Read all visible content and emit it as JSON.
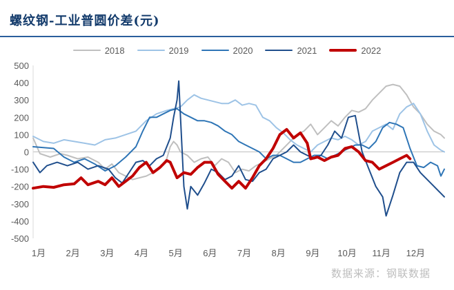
{
  "title": "螺纹钢-工业普圆价差(元)",
  "source": "数据来源：钢联数据",
  "chart_data": {
    "type": "line",
    "title": "螺纹钢-工业普圆价差(元)",
    "xlabel": "",
    "ylabel": "",
    "x_unit": "month (1 = start of January, 13 = end of December)",
    "xlim": [
      1,
      13
    ],
    "ylim": [
      -500,
      500
    ],
    "y_ticks": [
      "500",
      "400",
      "300",
      "200",
      "100",
      "0",
      "-100",
      "-200",
      "-300",
      "-400",
      "-500"
    ],
    "y_tick_values": [
      500,
      400,
      300,
      200,
      100,
      0,
      -100,
      -200,
      -300,
      -400,
      -500
    ],
    "x_ticks": [
      "1月",
      "2月",
      "3月",
      "4月",
      "5月",
      "6月",
      "7月",
      "8月",
      "9月",
      "10月",
      "11月",
      "12月"
    ],
    "legend_position": "top",
    "grid": false,
    "series": [
      {
        "name": "2018",
        "color": "#bfbfbf",
        "width": 2,
        "points": [
          [
            1.0,
            80
          ],
          [
            1.2,
            -10
          ],
          [
            1.5,
            -30
          ],
          [
            1.8,
            -10
          ],
          [
            2.0,
            -20
          ],
          [
            2.3,
            -40
          ],
          [
            2.6,
            -30
          ],
          [
            2.9,
            -60
          ],
          [
            3.1,
            -100
          ],
          [
            3.3,
            -70
          ],
          [
            3.5,
            -120
          ],
          [
            3.7,
            -140
          ],
          [
            3.9,
            -160
          ],
          [
            4.1,
            -150
          ],
          [
            4.3,
            -140
          ],
          [
            4.5,
            -120
          ],
          [
            4.7,
            -90
          ],
          [
            4.9,
            -40
          ],
          [
            5.0,
            30
          ],
          [
            5.1,
            60
          ],
          [
            5.2,
            40
          ],
          [
            5.3,
            0
          ],
          [
            5.5,
            -20
          ],
          [
            5.7,
            -60
          ],
          [
            5.9,
            -40
          ],
          [
            6.1,
            -30
          ],
          [
            6.3,
            -80
          ],
          [
            6.5,
            -40
          ],
          [
            6.7,
            -60
          ],
          [
            6.9,
            -120
          ],
          [
            7.1,
            -100
          ],
          [
            7.3,
            -110
          ],
          [
            7.5,
            -80
          ],
          [
            7.7,
            -60
          ],
          [
            7.9,
            -40
          ],
          [
            8.1,
            -20
          ],
          [
            8.3,
            20
          ],
          [
            8.5,
            60
          ],
          [
            8.7,
            100
          ],
          [
            8.9,
            120
          ],
          [
            9.1,
            160
          ],
          [
            9.3,
            100
          ],
          [
            9.5,
            140
          ],
          [
            9.7,
            180
          ],
          [
            9.9,
            150
          ],
          [
            10.1,
            200
          ],
          [
            10.3,
            240
          ],
          [
            10.5,
            230
          ],
          [
            10.7,
            250
          ],
          [
            10.9,
            300
          ],
          [
            11.1,
            340
          ],
          [
            11.3,
            380
          ],
          [
            11.5,
            390
          ],
          [
            11.7,
            380
          ],
          [
            11.9,
            330
          ],
          [
            12.1,
            260
          ],
          [
            12.3,
            220
          ],
          [
            12.5,
            160
          ],
          [
            12.7,
            120
          ],
          [
            12.9,
            100
          ],
          [
            13.0,
            80
          ]
        ]
      },
      {
        "name": "2019",
        "color": "#9dc3e6",
        "width": 2,
        "points": [
          [
            1.0,
            90
          ],
          [
            1.3,
            60
          ],
          [
            1.6,
            50
          ],
          [
            1.9,
            70
          ],
          [
            2.2,
            60
          ],
          [
            2.5,
            50
          ],
          [
            2.8,
            40
          ],
          [
            3.1,
            70
          ],
          [
            3.4,
            80
          ],
          [
            3.7,
            100
          ],
          [
            4.0,
            120
          ],
          [
            4.3,
            180
          ],
          [
            4.6,
            220
          ],
          [
            4.9,
            240
          ],
          [
            5.1,
            250
          ],
          [
            5.3,
            260
          ],
          [
            5.5,
            300
          ],
          [
            5.7,
            330
          ],
          [
            5.9,
            310
          ],
          [
            6.1,
            300
          ],
          [
            6.3,
            290
          ],
          [
            6.5,
            280
          ],
          [
            6.7,
            280
          ],
          [
            6.9,
            300
          ],
          [
            7.1,
            270
          ],
          [
            7.3,
            280
          ],
          [
            7.5,
            270
          ],
          [
            7.7,
            200
          ],
          [
            7.9,
            180
          ],
          [
            8.1,
            140
          ],
          [
            8.3,
            110
          ],
          [
            8.5,
            70
          ],
          [
            8.7,
            40
          ],
          [
            8.9,
            20
          ],
          [
            9.1,
            0
          ],
          [
            9.3,
            40
          ],
          [
            9.5,
            60
          ],
          [
            9.7,
            80
          ],
          [
            9.9,
            70
          ],
          [
            10.1,
            90
          ],
          [
            10.3,
            70
          ],
          [
            10.5,
            40
          ],
          [
            10.7,
            60
          ],
          [
            10.9,
            120
          ],
          [
            11.1,
            140
          ],
          [
            11.3,
            160
          ],
          [
            11.5,
            130
          ],
          [
            11.7,
            220
          ],
          [
            11.9,
            260
          ],
          [
            12.1,
            280
          ],
          [
            12.3,
            220
          ],
          [
            12.5,
            120
          ],
          [
            12.7,
            40
          ],
          [
            12.9,
            10
          ],
          [
            13.0,
            0
          ]
        ]
      },
      {
        "name": "2020",
        "color": "#2e75b6",
        "width": 2,
        "points": [
          [
            1.0,
            30
          ],
          [
            1.3,
            25
          ],
          [
            1.6,
            20
          ],
          [
            1.9,
            -30
          ],
          [
            2.2,
            -60
          ],
          [
            2.5,
            -40
          ],
          [
            2.8,
            -70
          ],
          [
            3.1,
            -110
          ],
          [
            3.4,
            -80
          ],
          [
            3.7,
            -30
          ],
          [
            4.0,
            30
          ],
          [
            4.2,
            120
          ],
          [
            4.4,
            200
          ],
          [
            4.6,
            200
          ],
          [
            4.8,
            220
          ],
          [
            5.0,
            240
          ],
          [
            5.2,
            250
          ],
          [
            5.4,
            220
          ],
          [
            5.6,
            200
          ],
          [
            5.8,
            180
          ],
          [
            6.0,
            180
          ],
          [
            6.2,
            170
          ],
          [
            6.4,
            150
          ],
          [
            6.6,
            120
          ],
          [
            6.8,
            100
          ],
          [
            7.0,
            60
          ],
          [
            7.2,
            40
          ],
          [
            7.4,
            20
          ],
          [
            7.6,
            0
          ],
          [
            7.8,
            -40
          ],
          [
            8.0,
            -20
          ],
          [
            8.2,
            -20
          ],
          [
            8.4,
            -40
          ],
          [
            8.6,
            -60
          ],
          [
            8.8,
            -60
          ],
          [
            9.0,
            -40
          ],
          [
            9.2,
            -20
          ],
          [
            9.4,
            -20
          ],
          [
            9.6,
            -40
          ],
          [
            9.8,
            -20
          ],
          [
            10.0,
            0
          ],
          [
            10.2,
            20
          ],
          [
            10.4,
            40
          ],
          [
            10.6,
            40
          ],
          [
            10.8,
            20
          ],
          [
            11.0,
            60
          ],
          [
            11.2,
            140
          ],
          [
            11.4,
            170
          ],
          [
            11.6,
            160
          ],
          [
            11.8,
            140
          ],
          [
            12.0,
            20
          ],
          [
            12.2,
            -80
          ],
          [
            12.4,
            -90
          ],
          [
            12.6,
            -60
          ],
          [
            12.8,
            -80
          ],
          [
            12.9,
            -140
          ],
          [
            13.0,
            -100
          ]
        ]
      },
      {
        "name": "2021",
        "color": "#1f4e8c",
        "width": 2,
        "points": [
          [
            1.0,
            -60
          ],
          [
            1.2,
            -120
          ],
          [
            1.4,
            -80
          ],
          [
            1.7,
            -60
          ],
          [
            2.0,
            -80
          ],
          [
            2.3,
            -60
          ],
          [
            2.6,
            -100
          ],
          [
            2.9,
            -80
          ],
          [
            3.2,
            -100
          ],
          [
            3.4,
            -150
          ],
          [
            3.6,
            -180
          ],
          [
            3.8,
            -120
          ],
          [
            4.0,
            -60
          ],
          [
            4.2,
            -50
          ],
          [
            4.4,
            -80
          ],
          [
            4.6,
            -40
          ],
          [
            4.8,
            -20
          ],
          [
            5.0,
            80
          ],
          [
            5.1,
            200
          ],
          [
            5.2,
            300
          ],
          [
            5.25,
            410
          ],
          [
            5.3,
            200
          ],
          [
            5.4,
            -200
          ],
          [
            5.5,
            -330
          ],
          [
            5.6,
            -200
          ],
          [
            5.8,
            -250
          ],
          [
            6.0,
            -180
          ],
          [
            6.2,
            -100
          ],
          [
            6.4,
            -120
          ],
          [
            6.6,
            -160
          ],
          [
            6.8,
            -140
          ],
          [
            7.0,
            -80
          ],
          [
            7.2,
            -160
          ],
          [
            7.4,
            -170
          ],
          [
            7.6,
            -120
          ],
          [
            7.8,
            -100
          ],
          [
            8.0,
            -40
          ],
          [
            8.2,
            -20
          ],
          [
            8.4,
            0
          ],
          [
            8.6,
            40
          ],
          [
            8.8,
            0
          ],
          [
            9.0,
            -20
          ],
          [
            9.2,
            -40
          ],
          [
            9.4,
            -20
          ],
          [
            9.6,
            40
          ],
          [
            9.8,
            120
          ],
          [
            10.0,
            80
          ],
          [
            10.2,
            200
          ],
          [
            10.4,
            210
          ],
          [
            10.6,
            0
          ],
          [
            10.8,
            -100
          ],
          [
            11.0,
            -200
          ],
          [
            11.2,
            -260
          ],
          [
            11.3,
            -370
          ],
          [
            11.5,
            -250
          ],
          [
            11.7,
            -120
          ],
          [
            11.9,
            -60
          ],
          [
            12.1,
            -60
          ],
          [
            12.3,
            -120
          ],
          [
            12.5,
            -160
          ],
          [
            12.7,
            -200
          ],
          [
            12.9,
            -240
          ],
          [
            13.0,
            -260
          ]
        ]
      },
      {
        "name": "2022",
        "color": "#c00000",
        "width": 4,
        "points": [
          [
            1.0,
            -210
          ],
          [
            1.3,
            -200
          ],
          [
            1.6,
            -205
          ],
          [
            1.9,
            -190
          ],
          [
            2.2,
            -185
          ],
          [
            2.4,
            -150
          ],
          [
            2.6,
            -190
          ],
          [
            2.9,
            -170
          ],
          [
            3.1,
            -190
          ],
          [
            3.3,
            -150
          ],
          [
            3.5,
            -200
          ],
          [
            3.7,
            -170
          ],
          [
            3.9,
            -140
          ],
          [
            4.1,
            -90
          ],
          [
            4.3,
            -60
          ],
          [
            4.5,
            -120
          ],
          [
            4.7,
            -90
          ],
          [
            4.9,
            -50
          ],
          [
            5.0,
            -60
          ],
          [
            5.2,
            -150
          ],
          [
            5.4,
            -120
          ],
          [
            5.6,
            -130
          ],
          [
            5.8,
            -90
          ],
          [
            6.0,
            -60
          ],
          [
            6.2,
            -60
          ],
          [
            6.4,
            -130
          ],
          [
            6.6,
            -170
          ],
          [
            6.8,
            -210
          ],
          [
            7.0,
            -170
          ],
          [
            7.2,
            -210
          ],
          [
            7.4,
            -150
          ],
          [
            7.6,
            -80
          ],
          [
            7.8,
            -40
          ],
          [
            8.0,
            20
          ],
          [
            8.2,
            100
          ],
          [
            8.4,
            130
          ],
          [
            8.6,
            80
          ],
          [
            8.8,
            110
          ],
          [
            9.0,
            50
          ],
          [
            9.1,
            -40
          ],
          [
            9.3,
            -30
          ],
          [
            9.5,
            -50
          ],
          [
            9.7,
            -30
          ],
          [
            9.9,
            -20
          ],
          [
            10.1,
            20
          ],
          [
            10.3,
            30
          ],
          [
            10.5,
            0
          ],
          [
            10.7,
            -50
          ],
          [
            10.9,
            -60
          ],
          [
            11.1,
            -100
          ],
          [
            11.3,
            -80
          ],
          [
            11.5,
            -60
          ],
          [
            11.7,
            -40
          ],
          [
            11.9,
            -20
          ],
          [
            12.0,
            -40
          ]
        ]
      }
    ]
  }
}
